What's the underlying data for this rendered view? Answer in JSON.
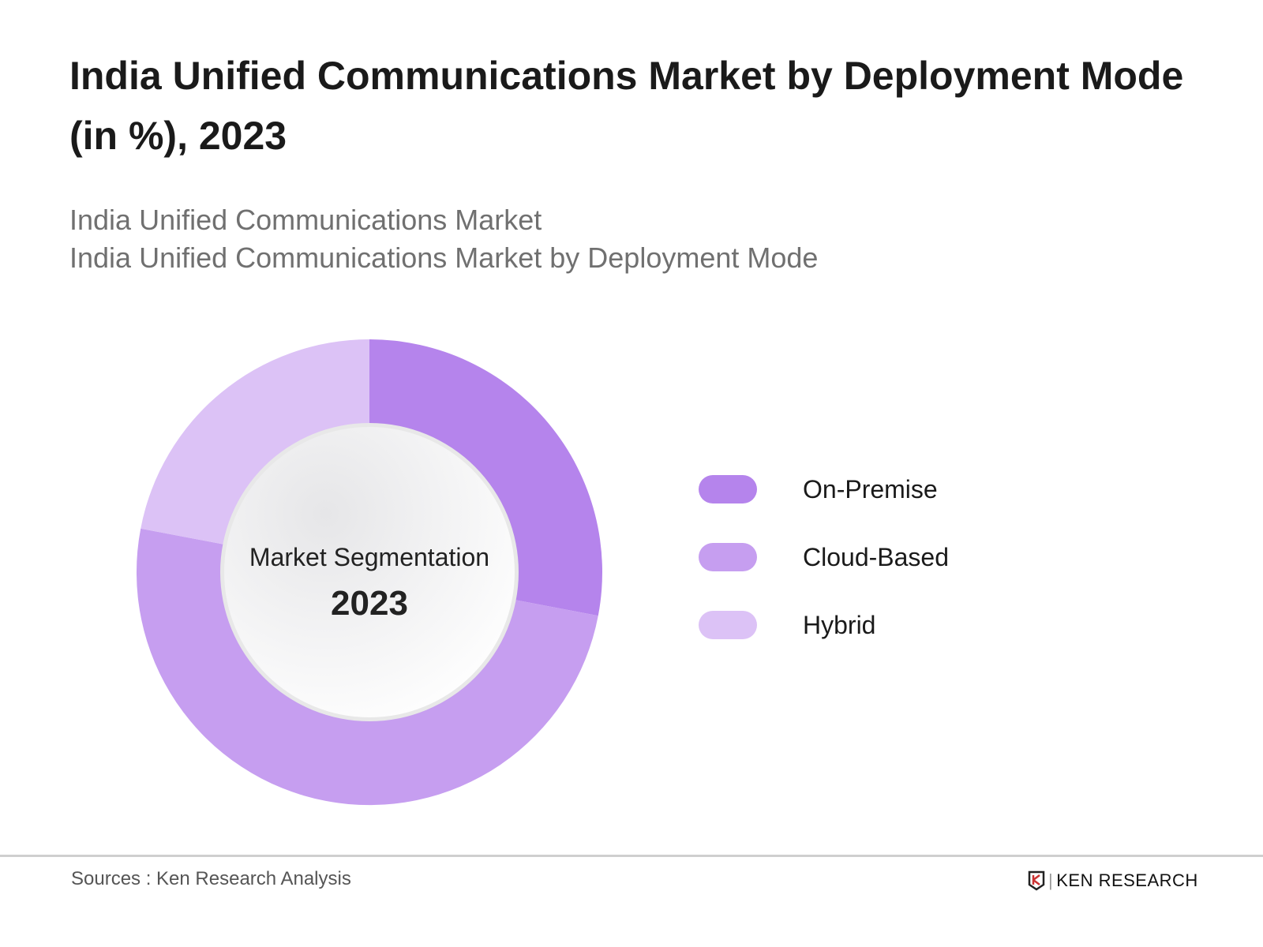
{
  "title": "India Unified Communications Market by Deployment Mode (in %), 2023",
  "subtitles": [
    "India Unified Communications Market",
    "India Unified Communications Market by Deployment Mode"
  ],
  "center": {
    "line1": "Market Segmentation",
    "line2": "2023"
  },
  "source": "Sources : Ken Research Analysis",
  "logo": "KEN RESEARCH",
  "chart_data": {
    "type": "pie",
    "donut": true,
    "categories": [
      "On-Premise",
      "Cloud-Based",
      "Hybrid"
    ],
    "values": [
      28,
      50,
      22
    ],
    "colors": [
      "#b584ec",
      "#c69ef0",
      "#dcc2f6"
    ],
    "legend_position": "right"
  }
}
